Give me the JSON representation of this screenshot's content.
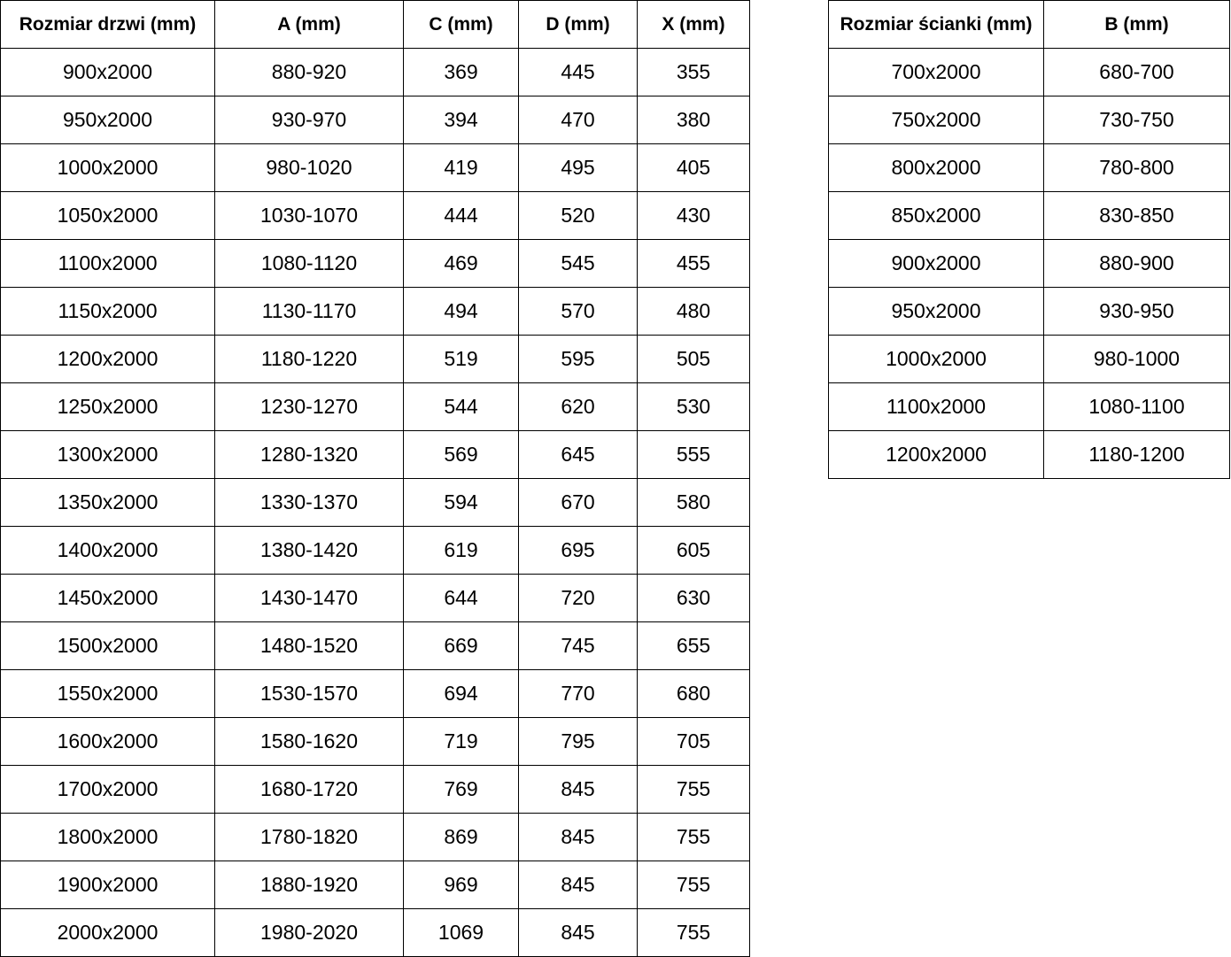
{
  "door_table": {
    "headers": [
      "Rozmiar drzwi (mm)",
      "A (mm)",
      "C (mm)",
      "D (mm)",
      "X (mm)"
    ],
    "rows": [
      [
        "900x2000",
        "880-920",
        "369",
        "445",
        "355"
      ],
      [
        "950x2000",
        "930-970",
        "394",
        "470",
        "380"
      ],
      [
        "1000x2000",
        "980-1020",
        "419",
        "495",
        "405"
      ],
      [
        "1050x2000",
        "1030-1070",
        "444",
        "520",
        "430"
      ],
      [
        "1100x2000",
        "1080-1120",
        "469",
        "545",
        "455"
      ],
      [
        "1150x2000",
        "1130-1170",
        "494",
        "570",
        "480"
      ],
      [
        "1200x2000",
        "1180-1220",
        "519",
        "595",
        "505"
      ],
      [
        "1250x2000",
        "1230-1270",
        "544",
        "620",
        "530"
      ],
      [
        "1300x2000",
        "1280-1320",
        "569",
        "645",
        "555"
      ],
      [
        "1350x2000",
        "1330-1370",
        "594",
        "670",
        "580"
      ],
      [
        "1400x2000",
        "1380-1420",
        "619",
        "695",
        "605"
      ],
      [
        "1450x2000",
        "1430-1470",
        "644",
        "720",
        "630"
      ],
      [
        "1500x2000",
        "1480-1520",
        "669",
        "745",
        "655"
      ],
      [
        "1550x2000",
        "1530-1570",
        "694",
        "770",
        "680"
      ],
      [
        "1600x2000",
        "1580-1620",
        "719",
        "795",
        "705"
      ],
      [
        "1700x2000",
        "1680-1720",
        "769",
        "845",
        "755"
      ],
      [
        "1800x2000",
        "1780-1820",
        "869",
        "845",
        "755"
      ],
      [
        "1900x2000",
        "1880-1920",
        "969",
        "845",
        "755"
      ],
      [
        "2000x2000",
        "1980-2020",
        "1069",
        "845",
        "755"
      ]
    ]
  },
  "wall_table": {
    "headers": [
      "Rozmiar ścianki (mm)",
      "B (mm)"
    ],
    "rows": [
      [
        "700x2000",
        "680-700"
      ],
      [
        "750x2000",
        "730-750"
      ],
      [
        "800x2000",
        "780-800"
      ],
      [
        "850x2000",
        "830-850"
      ],
      [
        "900x2000",
        "880-900"
      ],
      [
        "950x2000",
        "930-950"
      ],
      [
        "1000x2000",
        "980-1000"
      ],
      [
        "1100x2000",
        "1080-1100"
      ],
      [
        "1200x2000",
        "1180-1200"
      ]
    ]
  },
  "colors": {
    "border": "#000000",
    "text": "#000000",
    "background": "#ffffff"
  }
}
